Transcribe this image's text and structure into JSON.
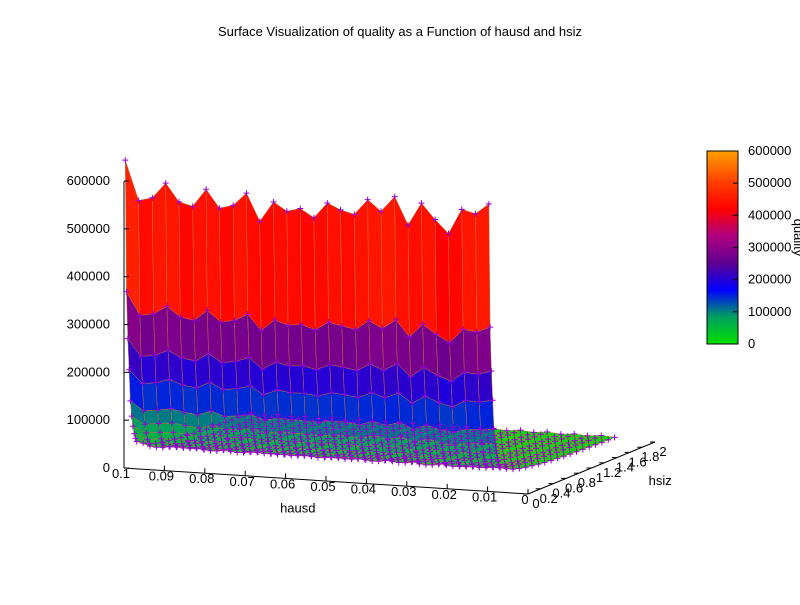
{
  "chart_data": {
    "type": "surface3d",
    "title": "Surface Visualization of quality as a Function of hausd and hsiz",
    "xlabel": "hausd",
    "ylabel": "hsiz",
    "zlabel": "quality",
    "xlim": [
      0.1,
      0.0
    ],
    "ylim": [
      0,
      2
    ],
    "zlim": [
      0,
      600000
    ],
    "x_ticks": [
      "0.1",
      "0.09",
      "0.08",
      "0.07",
      "0.06",
      "0.05",
      "0.04",
      "0.03",
      "0.02",
      "0.01",
      "0"
    ],
    "y_ticks": [
      "0",
      "0.2",
      "0.4",
      "0.6",
      "0.8",
      "1",
      "1.2",
      "1.4",
      "1.6",
      "1.8",
      "2"
    ],
    "z_ticks": [
      "0",
      "100000",
      "200000",
      "300000",
      "400000",
      "500000",
      "600000"
    ],
    "colorbar": {
      "label": "quality",
      "range": [
        0,
        600000
      ],
      "ticks": [
        "0",
        "100000",
        "200000",
        "300000",
        "400000",
        "500000",
        "600000"
      ],
      "colors": [
        "#00e000",
        "#00a060",
        "#0000ff",
        "#600090",
        "#b00080",
        "#ff0000",
        "#ff4000",
        "#ffa000"
      ]
    },
    "grid": {
      "hausd": [
        0.01,
        0.0133,
        0.0167,
        0.02,
        0.0233,
        0.0267,
        0.03,
        0.0333,
        0.0367,
        0.04,
        0.0433,
        0.0467,
        0.05,
        0.0533,
        0.0567,
        0.06,
        0.0633,
        0.0667,
        0.07,
        0.0733,
        0.0767,
        0.08,
        0.0833,
        0.0867,
        0.09,
        0.0933,
        0.0967,
        0.1
      ],
      "hsiz": [
        0.02,
        0.04,
        0.06,
        0.08,
        0.1,
        0.12,
        0.14,
        0.16,
        0.18,
        0.2,
        0.3,
        0.4,
        0.5,
        0.6,
        0.7,
        0.8,
        0.9,
        1.0,
        1.1,
        1.2,
        1.3,
        1.4,
        1.5,
        1.6,
        1.7,
        1.8,
        1.9,
        2.0
      ],
      "quality_by_hsiz_profile": [
        580000,
        330000,
        240000,
        180000,
        120000,
        90000,
        70000,
        55000,
        45000,
        38000,
        30000,
        24000,
        20000,
        17000,
        15000,
        13000,
        11000,
        10000,
        9000,
        8000,
        7000,
        6500,
        6000,
        5500,
        5000,
        4500,
        4200,
        4000
      ],
      "peak_quality_by_hausd": [
        600000,
        575000,
        585000,
        530000,
        560000,
        590000,
        545000,
        600000,
        570000,
        590000,
        560000,
        565000,
        580000,
        545000,
        565000,
        555000,
        575000,
        530000,
        590000,
        560000,
        555000,
        590000,
        555000,
        560000,
        600000,
        565000,
        560000,
        640000
      ]
    }
  }
}
